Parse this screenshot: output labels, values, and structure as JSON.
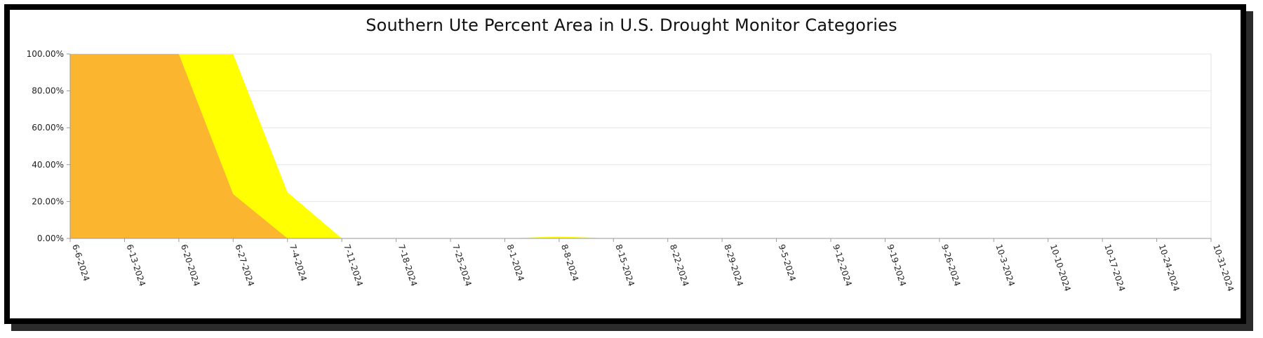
{
  "chart_data": {
    "type": "area",
    "title": "Southern Ute Percent Area in U.S. Drought Monitor Categories",
    "xlabel": "",
    "ylabel": "",
    "ylim": [
      0,
      100
    ],
    "y_ticks": [
      "0.00%",
      "20.00%",
      "40.00%",
      "60.00%",
      "80.00%",
      "100.00%"
    ],
    "x": [
      "6-6-2024",
      "6-13-2024",
      "6-20-2024",
      "6-27-2024",
      "7-4-2024",
      "7-11-2024",
      "7-18-2024",
      "7-25-2024",
      "8-1-2024",
      "8-8-2024",
      "8-15-2024",
      "8-22-2024",
      "8-29-2024",
      "9-5-2024",
      "9-12-2024",
      "9-19-2024",
      "9-26-2024",
      "10-3-2024",
      "10-10-2024",
      "10-17-2024",
      "10-24-2024",
      "10-31-2024"
    ],
    "series": [
      {
        "color": "#FBB52F",
        "values": [
          100,
          100,
          100,
          24,
          0,
          0,
          0,
          0,
          0,
          0,
          0,
          0,
          0,
          0,
          0,
          0,
          0,
          0,
          0,
          0,
          0,
          0
        ]
      },
      {
        "color": "#FFFF00",
        "values": [
          100,
          100,
          100,
          100,
          25,
          0,
          0,
          0,
          0,
          1,
          0,
          0,
          0,
          0,
          0,
          0,
          0,
          0,
          0,
          0,
          0,
          0
        ]
      }
    ],
    "grid": true
  }
}
